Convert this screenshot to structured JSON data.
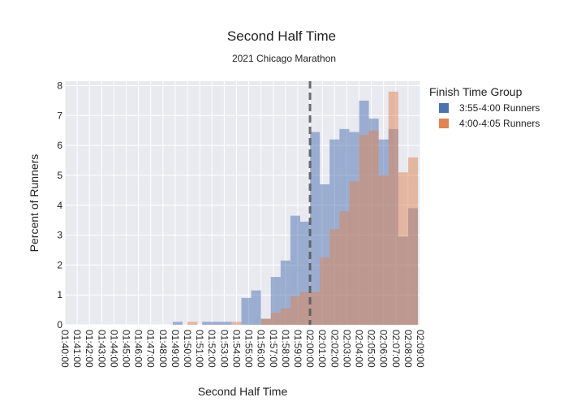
{
  "chart_data": {
    "type": "bar",
    "title": "Second Half Time",
    "subtitle": "2021 Chicago Marathon",
    "xlabel": "Second Half Time",
    "ylabel": "Percent of Runners",
    "ylim": [
      0,
      8.15
    ],
    "yticks": [
      0,
      1,
      2,
      3,
      4,
      5,
      6,
      7,
      8
    ],
    "x_range_minutes": [
      100,
      129
    ],
    "bin_width_minutes": 0.8,
    "xtick_labels": [
      "01:40:00",
      "01:41:00",
      "01:42:00",
      "01:43:00",
      "01:44:00",
      "01:45:00",
      "01:46:00",
      "01:47:00",
      "01:48:00",
      "01:49:00",
      "01:50:00",
      "01:51:00",
      "01:52:00",
      "01:53:00",
      "01:54:00",
      "01:55:00",
      "01:56:00",
      "01:57:00",
      "01:58:00",
      "01:59:00",
      "02:00:00",
      "02:01:00",
      "02:02:00",
      "02:03:00",
      "02:04:00",
      "02:05:00",
      "02:06:00",
      "02:07:00",
      "02:08:00",
      "02:09:00"
    ],
    "reference_line": {
      "x_minutes": 120,
      "style": "dashed"
    },
    "barmode": "overlay",
    "grid": true,
    "legend_placement": "top-right",
    "legend_title": "Finish Time Group",
    "series": [
      {
        "name": "3:55-4:00 Runners",
        "color": "#4c72b0",
        "bins": [
          {
            "start": 108.8,
            "value": 0.1
          },
          {
            "start": 111.2,
            "value": 0.1
          },
          {
            "start": 112.0,
            "value": 0.1
          },
          {
            "start": 112.8,
            "value": 0.1
          },
          {
            "start": 114.4,
            "value": 0.9
          },
          {
            "start": 115.2,
            "value": 1.15
          },
          {
            "start": 116.0,
            "value": 0.2
          },
          {
            "start": 116.8,
            "value": 1.6
          },
          {
            "start": 117.6,
            "value": 2.15
          },
          {
            "start": 118.4,
            "value": 3.65
          },
          {
            "start": 119.2,
            "value": 3.45
          },
          {
            "start": 120.0,
            "value": 6.45
          },
          {
            "start": 120.8,
            "value": 4.7
          },
          {
            "start": 121.6,
            "value": 6.2
          },
          {
            "start": 122.4,
            "value": 6.55
          },
          {
            "start": 123.2,
            "value": 6.45
          },
          {
            "start": 124.0,
            "value": 7.5
          },
          {
            "start": 124.8,
            "value": 6.9
          },
          {
            "start": 125.6,
            "value": 6.2
          },
          {
            "start": 126.4,
            "value": 6.55
          },
          {
            "start": 127.2,
            "value": 2.95
          },
          {
            "start": 128.0,
            "value": 3.9
          }
        ]
      },
      {
        "name": "4:00-4:05 Runners",
        "color": "#dd8452",
        "bins": [
          {
            "start": 110.0,
            "value": 0.1
          },
          {
            "start": 113.6,
            "value": 0.1
          },
          {
            "start": 116.0,
            "value": 0.2
          },
          {
            "start": 116.8,
            "value": 0.4
          },
          {
            "start": 117.6,
            "value": 0.55
          },
          {
            "start": 118.4,
            "value": 0.95
          },
          {
            "start": 119.2,
            "value": 1.1
          },
          {
            "start": 120.0,
            "value": 1.1
          },
          {
            "start": 120.8,
            "value": 2.25
          },
          {
            "start": 121.6,
            "value": 3.2
          },
          {
            "start": 122.4,
            "value": 3.8
          },
          {
            "start": 123.2,
            "value": 4.8
          },
          {
            "start": 124.0,
            "value": 6.35
          },
          {
            "start": 124.8,
            "value": 6.5
          },
          {
            "start": 125.6,
            "value": 5.0
          },
          {
            "start": 126.4,
            "value": 7.8
          },
          {
            "start": 127.2,
            "value": 5.1
          },
          {
            "start": 128.0,
            "value": 5.6
          }
        ]
      }
    ]
  }
}
